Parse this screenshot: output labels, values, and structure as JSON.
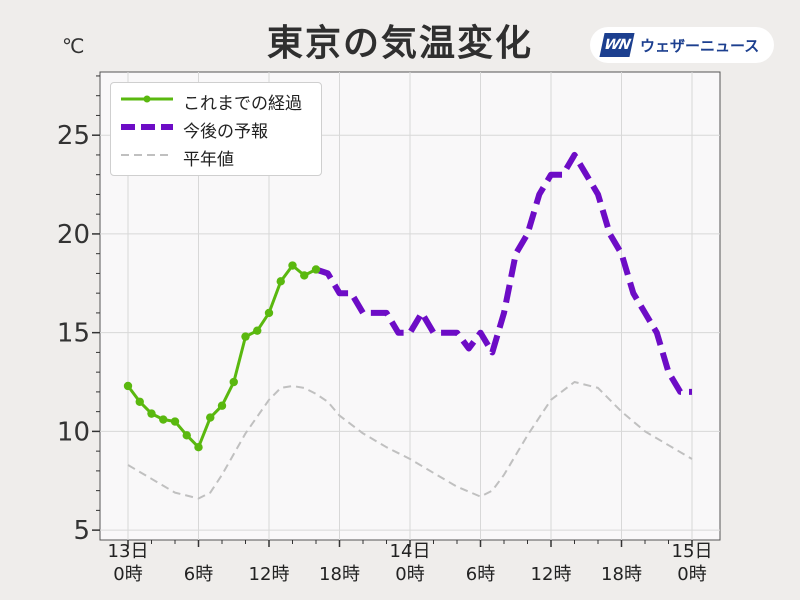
{
  "title": "東京の気温変化",
  "unit_label": "℃",
  "brand": {
    "mark": "WN",
    "name": "ウェザーニュース",
    "color": "#1c3f8f"
  },
  "chart_data": {
    "type": "line",
    "title": "東京の気温変化",
    "ylabel": "℃",
    "ylim": [
      4.5,
      28.2
    ],
    "xlim": [
      0,
      48
    ],
    "grid": true,
    "legend_position": "top-left",
    "y_ticks": [
      5,
      10,
      15,
      20,
      25
    ],
    "x_ticks": [
      {
        "x": 0,
        "label": [
          "13日",
          "0時"
        ]
      },
      {
        "x": 6,
        "label": [
          "6時"
        ]
      },
      {
        "x": 12,
        "label": [
          "12時"
        ]
      },
      {
        "x": 18,
        "label": [
          "18時"
        ]
      },
      {
        "x": 24,
        "label": [
          "14日",
          "0時"
        ]
      },
      {
        "x": 30,
        "label": [
          "6時"
        ]
      },
      {
        "x": 36,
        "label": [
          "12時"
        ]
      },
      {
        "x": 42,
        "label": [
          "18時"
        ]
      },
      {
        "x": 48,
        "label": [
          "15日",
          "0時"
        ]
      }
    ],
    "series": [
      {
        "name": "これまでの経過",
        "style": "solid-markers",
        "color": "#5ab80f",
        "x": [
          0,
          1,
          2,
          3,
          4,
          5,
          6,
          7,
          8,
          9,
          10,
          11,
          12,
          13,
          14,
          15,
          16
        ],
        "values": [
          12.3,
          11.5,
          10.9,
          10.6,
          10.5,
          9.8,
          9.2,
          10.7,
          11.3,
          12.5,
          14.8,
          15.1,
          16.0,
          17.6,
          18.4,
          17.9,
          18.2
        ]
      },
      {
        "name": "今後の予報",
        "style": "dashed-thick",
        "color": "#6d0cc6",
        "x": [
          16,
          17,
          18,
          19,
          20,
          21,
          22,
          23,
          24,
          25,
          26,
          27,
          28,
          29,
          30,
          31,
          32,
          33,
          34,
          35,
          36,
          37,
          38,
          39,
          40,
          41,
          42,
          43,
          44,
          45,
          46,
          47,
          48
        ],
        "values": [
          18.2,
          18.0,
          17.0,
          17.0,
          16.0,
          16.0,
          16.0,
          15.0,
          15.0,
          16.0,
          15.0,
          15.0,
          15.0,
          14.2,
          15.0,
          14.0,
          16.0,
          19.0,
          20.0,
          22.0,
          23.0,
          23.0,
          24.0,
          23.0,
          22.0,
          20.0,
          19.0,
          17.0,
          16.0,
          15.0,
          13.0,
          12.0,
          12.0
        ]
      },
      {
        "name": "平年値",
        "style": "dashed-thin",
        "color": "#c0c0c0",
        "x": [
          0,
          2,
          4,
          6,
          7,
          8,
          10,
          12,
          13,
          14,
          15,
          16,
          17,
          18,
          20,
          22,
          24,
          26,
          28,
          30,
          31,
          32,
          34,
          36,
          38,
          40,
          42,
          44,
          46,
          48
        ],
        "values": [
          8.3,
          7.6,
          6.9,
          6.6,
          6.9,
          7.8,
          9.9,
          11.6,
          12.2,
          12.3,
          12.2,
          11.9,
          11.5,
          10.8,
          9.9,
          9.2,
          8.6,
          7.9,
          7.2,
          6.7,
          7.0,
          7.8,
          9.8,
          11.6,
          12.5,
          12.2,
          11.0,
          10.0,
          9.3,
          8.6
        ]
      }
    ]
  }
}
